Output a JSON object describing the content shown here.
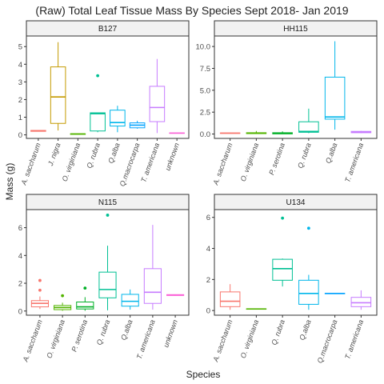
{
  "chart_data": {
    "type": "boxplot",
    "title": "(Raw) Total Leaf Tissue Mass By Species Sept 2018- Jan 2019",
    "xlabel": "Species",
    "ylabel": "Mass (g)",
    "species_colors": {
      "A. saccharum": "#F8766D",
      "J. nigra": "#C49A00",
      "O. virginiana": "#53B400",
      "P. serotina": "#00B026",
      "Q. rubra": "#00C094",
      "Q.alba": "#00B6EB",
      "Q.macrocarpa": "#06A4FF",
      "T. americana": "#C77CFF",
      "unknown": "#FB61D7"
    },
    "panels": [
      {
        "name": "B127",
        "ylim": [
          -0.2,
          5.6
        ],
        "yticks": [
          0,
          1,
          2,
          3,
          4,
          5
        ],
        "categories": [
          "A. saccharum",
          "J. nigra",
          "O. virginiana",
          "Q. rubra",
          "Q.alba",
          "Q.macrocarpa",
          "T. americana",
          "unknown"
        ],
        "boxes": [
          {
            "species": "A. saccharum",
            "min": 0.2,
            "q1": 0.2,
            "median": 0.23,
            "q3": 0.25,
            "max": 0.25,
            "outliers": []
          },
          {
            "species": "J. nigra",
            "min": 0.25,
            "q1": 0.65,
            "median": 2.15,
            "q3": 3.85,
            "max": 5.25,
            "outliers": []
          },
          {
            "species": "O. virginiana",
            "min": 0.02,
            "q1": 0.03,
            "median": 0.05,
            "q3": 0.06,
            "max": 0.07,
            "outliers": []
          },
          {
            "species": "Q. rubra",
            "min": 0.15,
            "q1": 0.22,
            "median": 1.2,
            "q3": 1.25,
            "max": 1.25,
            "outliers": [
              3.35
            ]
          },
          {
            "species": "Q.alba",
            "min": 0.15,
            "q1": 0.5,
            "median": 0.7,
            "q3": 1.4,
            "max": 1.65,
            "outliers": []
          },
          {
            "species": "Q.macrocarpa",
            "min": 0.35,
            "q1": 0.4,
            "median": 0.55,
            "q3": 0.68,
            "max": 0.8,
            "outliers": []
          },
          {
            "species": "T. americana",
            "min": 0.1,
            "q1": 0.75,
            "median": 1.55,
            "q3": 2.75,
            "max": 4.3,
            "outliers": []
          },
          {
            "species": "unknown",
            "min": 0.08,
            "q1": 0.09,
            "median": 0.1,
            "q3": 0.11,
            "max": 0.12,
            "outliers": []
          }
        ]
      },
      {
        "name": "HH115",
        "ylim": [
          -0.5,
          11.2
        ],
        "yticks": [
          0.0,
          2.5,
          5.0,
          7.5,
          10.0
        ],
        "categories": [
          "A. saccharum",
          "O. virginiana",
          "P. serotina",
          "Q. rubra",
          "Q.alba",
          "T. americana"
        ],
        "boxes": [
          {
            "species": "A. saccharum",
            "min": 0.05,
            "q1": 0.08,
            "median": 0.1,
            "q3": 0.12,
            "max": 0.15,
            "outliers": []
          },
          {
            "species": "O. virginiana",
            "min": 0.02,
            "q1": 0.05,
            "median": 0.1,
            "q3": 0.15,
            "max": 0.35,
            "outliers": []
          },
          {
            "species": "P. serotina",
            "min": 0.0,
            "q1": 0.02,
            "median": 0.08,
            "q3": 0.15,
            "max": 0.3,
            "outliers": []
          },
          {
            "species": "Q. rubra",
            "min": 0.1,
            "q1": 0.2,
            "median": 0.3,
            "q3": 1.4,
            "max": 2.9,
            "outliers": []
          },
          {
            "species": "Q.alba",
            "min": 0.5,
            "q1": 1.7,
            "median": 1.95,
            "q3": 6.5,
            "max": 10.6,
            "outliers": []
          },
          {
            "species": "T. americana",
            "min": 0.1,
            "q1": 0.15,
            "median": 0.25,
            "q3": 0.3,
            "max": 0.35,
            "outliers": []
          }
        ]
      },
      {
        "name": "N115",
        "ylim": [
          -0.3,
          7.3
        ],
        "yticks": [
          0,
          2,
          4,
          6
        ],
        "categories": [
          "A. saccharum",
          "O. virginiana",
          "P. serotina",
          "Q. rubra",
          "Q.alba",
          "T. americana",
          "unknown"
        ],
        "boxes": [
          {
            "species": "A. saccharum",
            "min": 0.15,
            "q1": 0.3,
            "median": 0.55,
            "q3": 0.75,
            "max": 1.05,
            "outliers": [
              1.5,
              2.2
            ]
          },
          {
            "species": "O. virginiana",
            "min": 0.02,
            "q1": 0.1,
            "median": 0.25,
            "q3": 0.4,
            "max": 0.6,
            "outliers": [
              1.1
            ]
          },
          {
            "species": "P. serotina",
            "min": 0.02,
            "q1": 0.15,
            "median": 0.3,
            "q3": 0.65,
            "max": 1.0,
            "outliers": [
              1.65
            ]
          },
          {
            "species": "Q. rubra",
            "min": 0.05,
            "q1": 0.95,
            "median": 1.55,
            "q3": 2.8,
            "max": 4.7,
            "outliers": [
              6.9
            ]
          },
          {
            "species": "Q.alba",
            "min": 0.1,
            "q1": 0.35,
            "median": 0.7,
            "q3": 1.2,
            "max": 1.55,
            "outliers": []
          },
          {
            "species": "T. americana",
            "min": 0.1,
            "q1": 0.55,
            "median": 1.35,
            "q3": 3.05,
            "max": 6.2,
            "outliers": []
          },
          {
            "species": "unknown",
            "min": 1.1,
            "q1": 1.12,
            "median": 1.15,
            "q3": 1.18,
            "max": 1.2,
            "outliers": []
          }
        ]
      },
      {
        "name": "U134",
        "ylim": [
          -0.3,
          6.5
        ],
        "yticks": [
          0,
          2,
          4,
          6
        ],
        "categories": [
          "A. saccharum",
          "O. virginiana",
          "Q. rubra",
          "Q.alba",
          "Q.macrocarpa",
          "T. americana"
        ],
        "boxes": [
          {
            "species": "A. saccharum",
            "min": 0.05,
            "q1": 0.25,
            "median": 0.6,
            "q3": 1.2,
            "max": 1.7,
            "outliers": []
          },
          {
            "species": "O. virginiana",
            "min": 0.08,
            "q1": 0.09,
            "median": 0.1,
            "q3": 0.11,
            "max": 0.12,
            "outliers": []
          },
          {
            "species": "Q. rubra",
            "min": 1.55,
            "q1": 1.95,
            "median": 2.7,
            "q3": 3.3,
            "max": 3.35,
            "outliers": [
              5.95
            ]
          },
          {
            "species": "Q.alba",
            "min": 0.05,
            "q1": 0.4,
            "median": 1.1,
            "q3": 1.95,
            "max": 2.3,
            "outliers": [
              5.3
            ]
          },
          {
            "species": "Q.macrocarpa",
            "min": 1.08,
            "q1": 1.09,
            "median": 1.1,
            "q3": 1.11,
            "max": 1.12,
            "outliers": []
          },
          {
            "species": "T. americana",
            "min": 0.05,
            "q1": 0.25,
            "median": 0.5,
            "q3": 0.85,
            "max": 1.3,
            "outliers": []
          }
        ]
      }
    ]
  }
}
